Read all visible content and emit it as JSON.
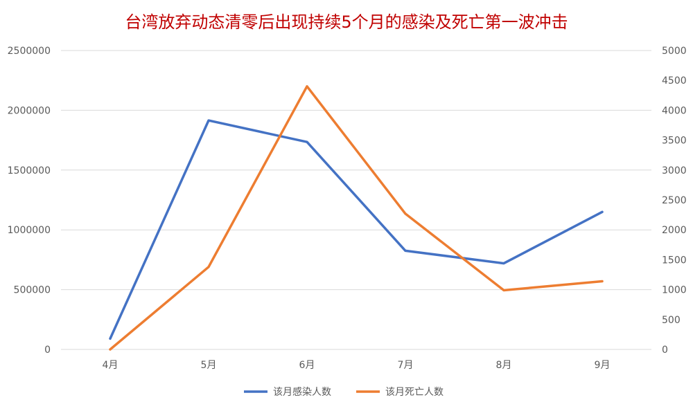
{
  "chart_data": {
    "type": "line",
    "title": "台湾放弃动态清零后出现持续5个月的感染及死亡第一波冲击",
    "categories": [
      "4月",
      "5月",
      "6月",
      "7月",
      "8月",
      "9月"
    ],
    "series": [
      {
        "name": "该月感染人数",
        "axis": "left",
        "color": "#4472C4",
        "values": [
          90000,
          1915000,
          1735000,
          825000,
          720000,
          1150000
        ]
      },
      {
        "name": "该月死亡人数",
        "axis": "right",
        "color": "#ED7D31",
        "values": [
          0,
          1380,
          4400,
          2270,
          990,
          1140
        ]
      }
    ],
    "y_left": {
      "min": 0,
      "max": 2500000,
      "ticks": [
        "0",
        "500000",
        "1000000",
        "1500000",
        "2000000",
        "2500000"
      ]
    },
    "y_right": {
      "min": 0,
      "max": 5000,
      "ticks": [
        "0",
        "500",
        "1000",
        "1500",
        "2000",
        "2500",
        "3000",
        "3500",
        "4000",
        "4500",
        "5000"
      ]
    },
    "grid": true,
    "legend_position": "bottom"
  }
}
